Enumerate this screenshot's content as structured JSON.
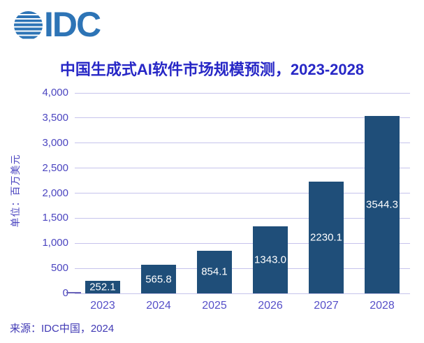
{
  "logo": {
    "text": "IDC",
    "color": "#2d74b6"
  },
  "title": {
    "text": "中国生成式AI软件市场规模预测，2023-2028",
    "color": "#2727c6"
  },
  "source": {
    "text": "来源：IDC中国，2024"
  },
  "chart_data": {
    "type": "bar",
    "title": "中国生成式AI软件市场规模预测，2023-2028",
    "categories": [
      "2023",
      "2024",
      "2025",
      "2026",
      "2027",
      "2028"
    ],
    "values": [
      252.1,
      565.8,
      854.1,
      1343.0,
      2230.1,
      3544.3
    ],
    "value_labels": [
      "252.1",
      "565.8",
      "854.1",
      "1343.0",
      "2230.1",
      "3544.3"
    ],
    "xlabel": "",
    "ylabel": "单位：百万美元",
    "ylim": [
      0,
      4000
    ],
    "ytick_step": 500,
    "ytick_labels": [
      "0",
      "500",
      "1,000",
      "1,500",
      "2,000",
      "2,500",
      "3,000",
      "3,500",
      "4,000"
    ],
    "grid": true,
    "legend": "none",
    "bar_color": "#1f4e79",
    "gridline_color": "#c6c3ec",
    "axis_label_color": "#564fc8",
    "data_label_color": "#ffffff"
  }
}
